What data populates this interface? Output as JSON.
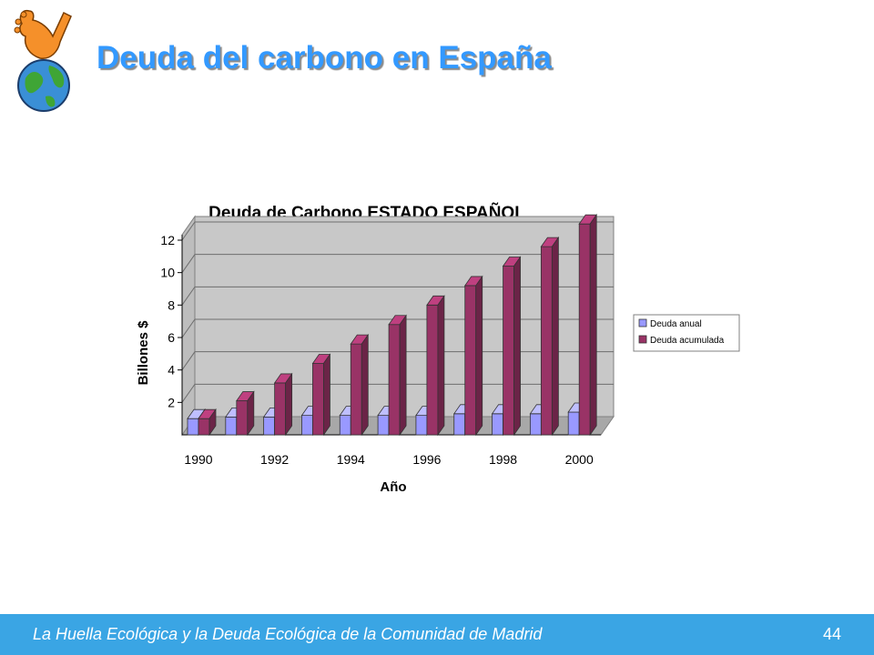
{
  "slide": {
    "title": "Deuda del carbono en España",
    "footer_text": "La Huella Ecológica y la Deuda Ecológica de la Comunidad de Madrid",
    "page_number": "44",
    "title_color": "#3399ff",
    "footer_color": "#3aa5e4"
  },
  "chart_data": {
    "type": "bar",
    "title": "Deuda de Carbono ESTADO ESPAÑOL",
    "xlabel": "Año",
    "ylabel": "Billones $",
    "categories": [
      "1990",
      "1991",
      "1992",
      "1993",
      "1994",
      "1995",
      "1996",
      "1997",
      "1998",
      "1999",
      "2000"
    ],
    "x_tick_labels": [
      "1990",
      "1992",
      "1994",
      "1996",
      "1998",
      "2000"
    ],
    "y_ticks": [
      "2",
      "4",
      "6",
      "8",
      "10",
      "12"
    ],
    "ylim": [
      0,
      12
    ],
    "grid": true,
    "legend_position": "right",
    "series": [
      {
        "name": "Deuda anual",
        "color": "#9999ff",
        "values": [
          1.0,
          1.1,
          1.1,
          1.2,
          1.2,
          1.2,
          1.2,
          1.3,
          1.3,
          1.3,
          1.4
        ]
      },
      {
        "name": "Deuda acumulada",
        "color": "#993366",
        "values": [
          1.0,
          2.1,
          3.2,
          4.4,
          5.6,
          6.8,
          8.0,
          9.2,
          10.4,
          11.6,
          13.0
        ]
      }
    ]
  }
}
